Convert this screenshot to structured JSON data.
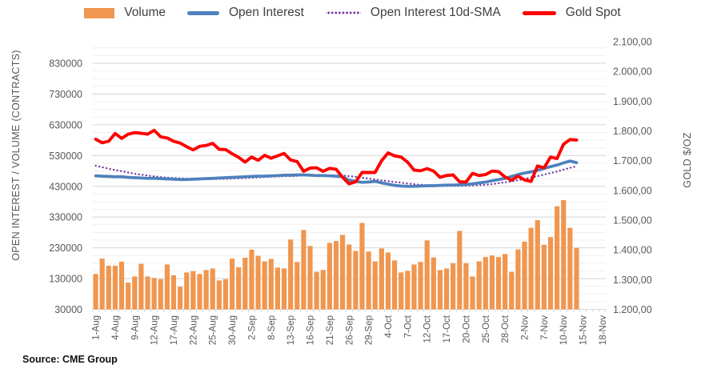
{
  "source": "Source: CME Group",
  "chart_data": {
    "type": "combo-bar-line",
    "grid": "on",
    "legend_position": "top",
    "categories": [
      "1-Aug",
      "2-Aug",
      "3-Aug",
      "4-Aug",
      "5-Aug",
      "8-Aug",
      "9-Aug",
      "10-Aug",
      "11-Aug",
      "12-Aug",
      "15-Aug",
      "16-Aug",
      "17-Aug",
      "18-Aug",
      "19-Aug",
      "22-Aug",
      "23-Aug",
      "24-Aug",
      "25-Aug",
      "26-Aug",
      "29-Aug",
      "30-Aug",
      "31-Aug",
      "1-Sep",
      "2-Sep",
      "6-Sep",
      "7-Sep",
      "8-Sep",
      "9-Sep",
      "12-Sep",
      "13-Sep",
      "14-Sep",
      "15-Sep",
      "16-Sep",
      "19-Sep",
      "20-Sep",
      "21-Sep",
      "22-Sep",
      "23-Sep",
      "26-Sep",
      "27-Sep",
      "28-Sep",
      "29-Sep",
      "30-Sep",
      "3-Oct",
      "4-Oct",
      "5-Oct",
      "6-Oct",
      "7-Oct",
      "10-Oct",
      "11-Oct",
      "12-Oct",
      "13-Oct",
      "14-Oct",
      "17-Oct",
      "18-Oct",
      "19-Oct",
      "20-Oct",
      "21-Oct",
      "24-Oct",
      "25-Oct",
      "26-Oct",
      "27-Oct",
      "28-Oct",
      "31-Oct",
      "1-Nov",
      "2-Nov",
      "3-Nov",
      "4-Nov",
      "7-Nov",
      "8-Nov",
      "9-Nov",
      "10-Nov",
      "11-Nov",
      "14-Nov",
      "15-Nov",
      "16-Nov",
      "17-Nov",
      "18-Nov"
    ],
    "x_axis": {
      "label_every": 3
    },
    "left_axis": {
      "title": "OPEN INTEREST / VOLUME (CONTRACTS)",
      "min": 30000,
      "grid_top": 900000,
      "major_interval": 100000,
      "minor_interval": 25000,
      "ticks": [
        {
          "value": 830000,
          "label": "830000"
        },
        {
          "value": 730000,
          "label": "730000"
        },
        {
          "value": 630000,
          "label": "630000"
        },
        {
          "value": 530000,
          "label": "530000"
        },
        {
          "value": 430000,
          "label": "430000"
        },
        {
          "value": 330000,
          "label": "330000"
        },
        {
          "value": 230000,
          "label": "230000"
        },
        {
          "value": 130000,
          "label": "130000"
        },
        {
          "value": 30000,
          "label": "30000"
        }
      ]
    },
    "right_axis": {
      "title": "GOLD $/OZ",
      "min": 1200,
      "max": 2100,
      "ticks": [
        {
          "value": 2100,
          "label": "2.100,00"
        },
        {
          "value": 2000,
          "label": "2.000,00"
        },
        {
          "value": 1900,
          "label": "1.900,00"
        },
        {
          "value": 1800,
          "label": "1.800,00"
        },
        {
          "value": 1700,
          "label": "1.700,00"
        },
        {
          "value": 1600,
          "label": "1.600,00"
        },
        {
          "value": 1500,
          "label": "1.500,00"
        },
        {
          "value": 1400,
          "label": "1.400,00"
        },
        {
          "value": 1300,
          "label": "1.300,00"
        },
        {
          "value": 1200,
          "label": "1.200,00"
        }
      ]
    },
    "series": [
      {
        "name": "Volume",
        "type": "bar",
        "axis": "left",
        "color": "#F0964F",
        "values": [
          145000,
          195000,
          172000,
          172000,
          185000,
          117000,
          137000,
          178000,
          137000,
          132000,
          128000,
          176000,
          141000,
          104000,
          150000,
          154000,
          145000,
          158000,
          163000,
          124000,
          128000,
          195000,
          167000,
          198000,
          224000,
          204000,
          186000,
          194000,
          166000,
          163000,
          257000,
          184000,
          288000,
          236000,
          152000,
          158000,
          246000,
          252000,
          272000,
          241000,
          220000,
          311000,
          218000,
          186000,
          228000,
          215000,
          189000,
          150000,
          155000,
          176000,
          184000,
          254000,
          199000,
          158000,
          163000,
          180000,
          285000,
          180000,
          137000,
          186000,
          200000,
          205000,
          200000,
          210000,
          152000,
          225000,
          250000,
          295000,
          320000,
          240000,
          265000,
          365000,
          385000,
          295000,
          230000,
          null,
          null,
          null,
          null
        ]
      },
      {
        "name": "Open Interest",
        "type": "line",
        "axis": "left",
        "color": "#4E81BD",
        "values": [
          464000,
          463000,
          462000,
          461000,
          461000,
          459000,
          458000,
          457000,
          456000,
          456000,
          455000,
          454000,
          453000,
          452000,
          452000,
          453000,
          454000,
          455000,
          456000,
          457000,
          458000,
          459000,
          460000,
          461000,
          462000,
          463000,
          463000,
          464000,
          465000,
          466000,
          466000,
          467000,
          467000,
          466000,
          465000,
          465000,
          464000,
          463000,
          461000,
          450000,
          446000,
          443000,
          444000,
          446000,
          441000,
          437000,
          433000,
          431000,
          430000,
          430000,
          431000,
          432000,
          432000,
          433000,
          434000,
          434000,
          435000,
          436000,
          438000,
          441000,
          444000,
          448000,
          452000,
          456000,
          462000,
          468000,
          473000,
          477000,
          482000,
          488000,
          494000,
          499000,
          506000,
          512000,
          507000,
          null,
          null,
          null,
          null
        ]
      },
      {
        "name": "Open Interest 10d-SMA",
        "type": "dotted-line",
        "axis": "left",
        "color": "#7030A0",
        "values": [
          497000,
          492000,
          487000,
          483000,
          479000,
          475000,
          471000,
          468000,
          465000,
          462000,
          460000,
          458000,
          457000,
          456000,
          455000,
          454000,
          453000,
          453000,
          453000,
          454000,
          454000,
          455000,
          456000,
          457000,
          458000,
          459000,
          460000,
          461000,
          462000,
          463000,
          463000,
          464000,
          465000,
          465000,
          466000,
          466000,
          466000,
          465000,
          465000,
          463000,
          461000,
          458000,
          455000,
          452000,
          449000,
          447000,
          444000,
          442000,
          439000,
          437000,
          435000,
          433000,
          432000,
          431000,
          431000,
          431000,
          431000,
          432000,
          433000,
          434000,
          435000,
          437000,
          440000,
          443000,
          446000,
          450000,
          454000,
          459000,
          463000,
          468000,
          473000,
          478000,
          484000,
          490000,
          495000,
          null,
          null,
          null,
          null
        ]
      },
      {
        "name": "Gold Spot",
        "type": "line",
        "axis": "right",
        "color": "#FE0000",
        "values": [
          1772,
          1760,
          1765,
          1791,
          1775,
          1789,
          1794,
          1792,
          1789,
          1802,
          1780,
          1776,
          1765,
          1759,
          1747,
          1736,
          1748,
          1751,
          1758,
          1738,
          1737,
          1723,
          1711,
          1695,
          1712,
          1701,
          1718,
          1708,
          1716,
          1724,
          1702,
          1697,
          1664,
          1675,
          1676,
          1664,
          1674,
          1671,
          1644,
          1622,
          1629,
          1660,
          1660,
          1660,
          1700,
          1726,
          1716,
          1712,
          1695,
          1668,
          1666,
          1673,
          1665,
          1644,
          1650,
          1652,
          1629,
          1628,
          1657,
          1650,
          1653,
          1665,
          1663,
          1645,
          1634,
          1648,
          1635,
          1630,
          1682,
          1676,
          1712,
          1707,
          1755,
          1771,
          1769,
          null,
          null,
          null,
          null
        ]
      }
    ]
  }
}
